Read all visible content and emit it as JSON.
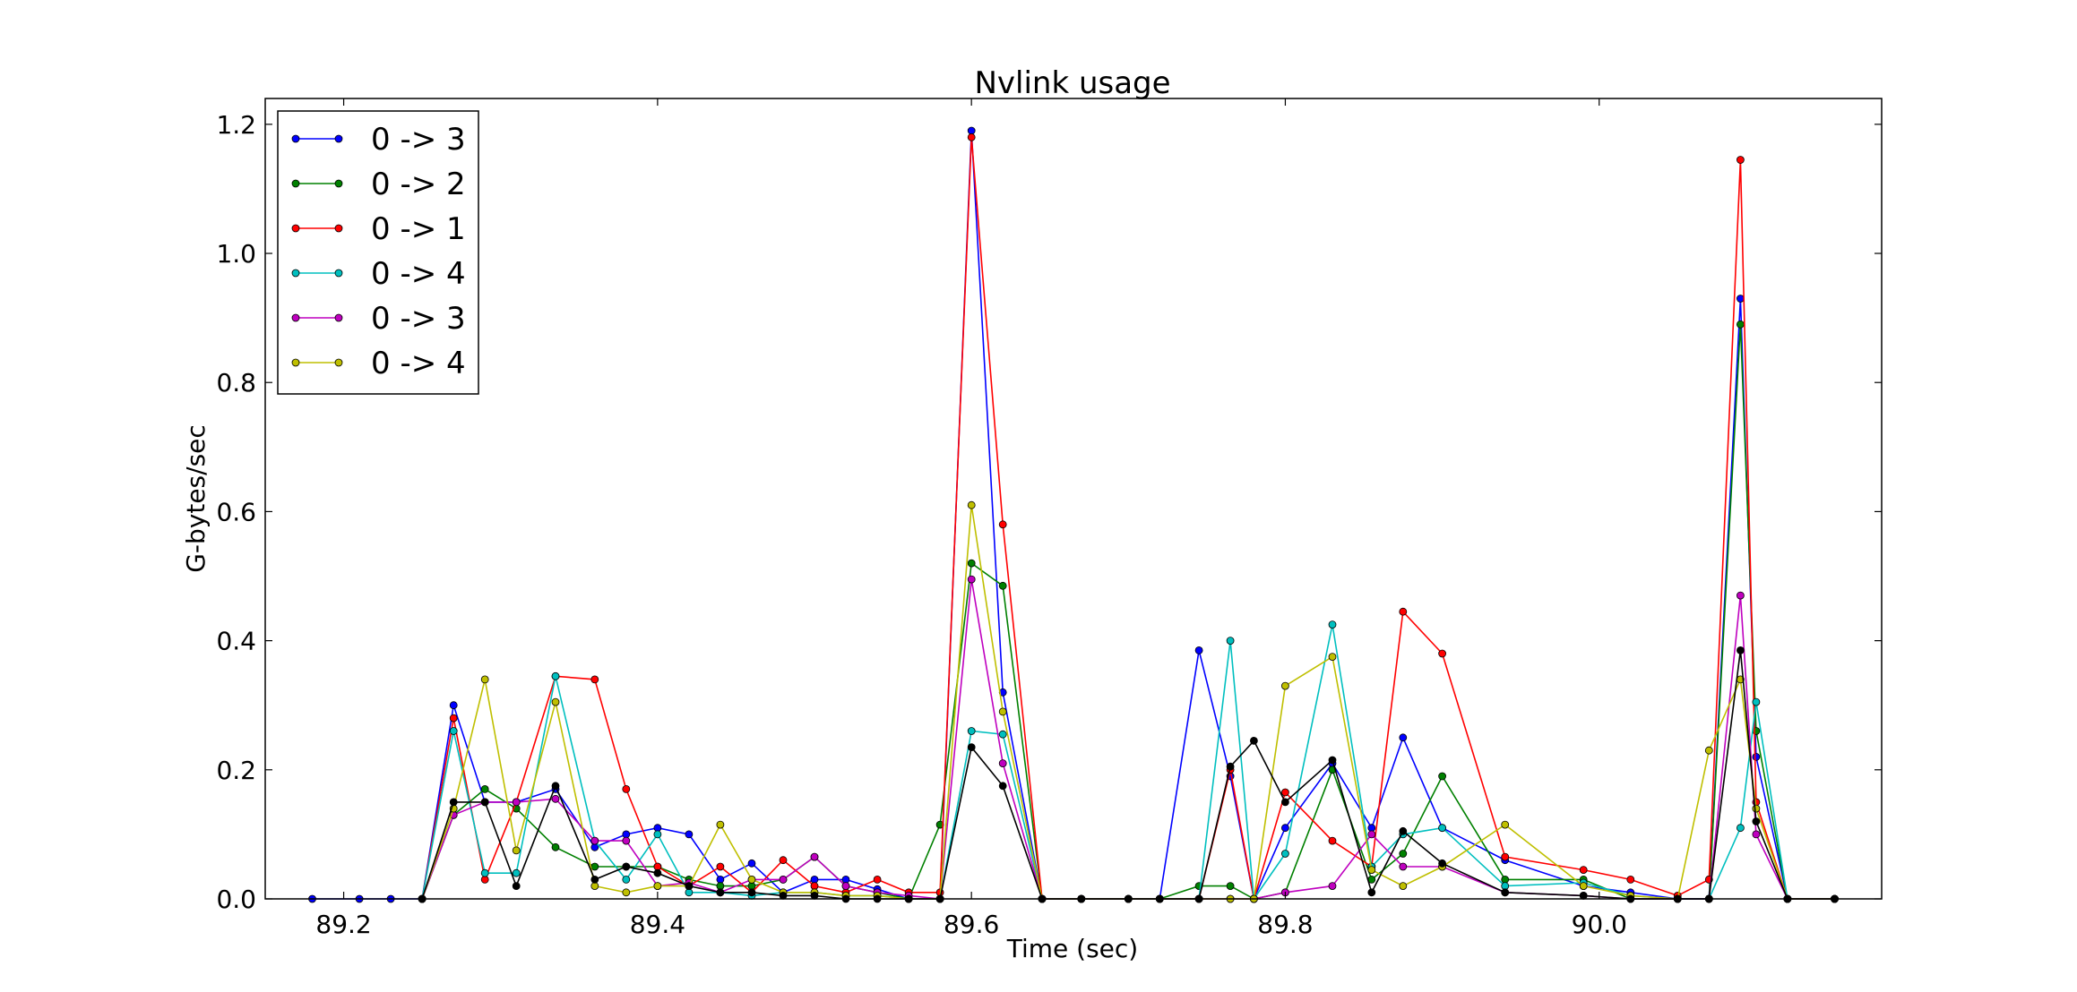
{
  "chart_data": {
    "type": "line",
    "title": "Nvlink usage",
    "xlabel": "Time (sec)",
    "ylabel": "G-bytes/sec",
    "xlim": [
      89.15,
      90.18
    ],
    "ylim": [
      0.0,
      1.24
    ],
    "x_ticks": [
      "89.2",
      "89.4",
      "89.6",
      "89.8",
      "90.0"
    ],
    "x_tick_values": [
      89.2,
      89.4,
      89.6,
      89.8,
      90.0
    ],
    "y_ticks": [
      "0.0",
      "0.2",
      "0.4",
      "0.6",
      "0.8",
      "1.0",
      "1.2"
    ],
    "y_tick_values": [
      0.0,
      0.2,
      0.4,
      0.6,
      0.8,
      1.0,
      1.2
    ],
    "grid": false,
    "legend_position": "top-left",
    "series": [
      {
        "name": "0 -> 3",
        "color": "#0000ff",
        "x": [
          89.18,
          89.21,
          89.23,
          89.25,
          89.27,
          89.29,
          89.31,
          89.335,
          89.36,
          89.38,
          89.4,
          89.42,
          89.44,
          89.46,
          89.48,
          89.5,
          89.52,
          89.54,
          89.56,
          89.58,
          89.6,
          89.62,
          89.645,
          89.67,
          89.7,
          89.72,
          89.745,
          89.765,
          89.78,
          89.8,
          89.83,
          89.855,
          89.875,
          89.9,
          89.94,
          89.99,
          90.02,
          90.05,
          90.07,
          90.09,
          90.1,
          90.12,
          90.15
        ],
        "y": [
          0,
          0,
          0,
          0,
          0.3,
          0.15,
          0.15,
          0.17,
          0.08,
          0.1,
          0.11,
          0.1,
          0.03,
          0.055,
          0.01,
          0.03,
          0.03,
          0.015,
          0,
          0,
          1.19,
          0.32,
          0,
          0,
          0,
          0,
          0.385,
          0.19,
          0,
          0.11,
          0.21,
          0.11,
          0.25,
          0.11,
          0.06,
          0.02,
          0.01,
          0,
          0,
          0.93,
          0.22,
          0,
          0
        ]
      },
      {
        "name": "0 -> 2",
        "color": "#008000",
        "x": [
          89.25,
          89.27,
          89.29,
          89.31,
          89.335,
          89.36,
          89.38,
          89.4,
          89.42,
          89.44,
          89.46,
          89.48,
          89.5,
          89.52,
          89.54,
          89.56,
          89.58,
          89.6,
          89.62,
          89.645,
          89.67,
          89.7,
          89.72,
          89.745,
          89.765,
          89.78,
          89.8,
          89.83,
          89.855,
          89.875,
          89.9,
          89.94,
          89.99,
          90.02,
          90.05,
          90.07,
          90.09,
          90.1,
          90.12,
          90.15
        ],
        "y": [
          0,
          0.13,
          0.17,
          0.14,
          0.08,
          0.05,
          0.05,
          0.05,
          0.03,
          0.02,
          0.02,
          0.03,
          0.065,
          0.02,
          0.01,
          0,
          0.115,
          0.52,
          0.485,
          0,
          0,
          0,
          0,
          0.02,
          0.02,
          0,
          0.01,
          0.2,
          0.03,
          0.07,
          0.19,
          0.03,
          0.03,
          0,
          0,
          0,
          0.89,
          0.26,
          0,
          0
        ]
      },
      {
        "name": "0 -> 1",
        "color": "#ff0000",
        "x": [
          89.25,
          89.27,
          89.29,
          89.31,
          89.335,
          89.36,
          89.38,
          89.4,
          89.42,
          89.44,
          89.46,
          89.48,
          89.5,
          89.52,
          89.54,
          89.56,
          89.58,
          89.6,
          89.62,
          89.645,
          89.67,
          89.7,
          89.72,
          89.745,
          89.765,
          89.78,
          89.8,
          89.83,
          89.855,
          89.875,
          89.9,
          89.94,
          89.99,
          90.02,
          90.05,
          90.07,
          90.09,
          90.1,
          90.12,
          90.15
        ],
        "y": [
          0,
          0.28,
          0.03,
          0.15,
          0.345,
          0.34,
          0.17,
          0.05,
          0.02,
          0.05,
          0.01,
          0.06,
          0.02,
          0.01,
          0.03,
          0.01,
          0.01,
          1.18,
          0.58,
          0,
          0,
          0,
          0,
          0,
          0.2,
          0,
          0.165,
          0.09,
          0.05,
          0.445,
          0.38,
          0.065,
          0.045,
          0.03,
          0.005,
          0.03,
          1.145,
          0.15,
          0,
          0
        ]
      },
      {
        "name": "0 -> 4",
        "color": "#00bfbf",
        "x": [
          89.25,
          89.27,
          89.29,
          89.31,
          89.335,
          89.36,
          89.38,
          89.4,
          89.42,
          89.44,
          89.46,
          89.48,
          89.5,
          89.52,
          89.54,
          89.56,
          89.58,
          89.6,
          89.62,
          89.645,
          89.67,
          89.7,
          89.72,
          89.745,
          89.765,
          89.78,
          89.8,
          89.83,
          89.855,
          89.875,
          89.9,
          89.94,
          89.99,
          90.02,
          90.05,
          90.07,
          90.09,
          90.1,
          90.12,
          90.15
        ],
        "y": [
          0,
          0.26,
          0.04,
          0.04,
          0.345,
          0.09,
          0.03,
          0.1,
          0.01,
          0.01,
          0.005,
          0.01,
          0.01,
          0.005,
          0.005,
          0,
          0,
          0.26,
          0.255,
          0,
          0,
          0,
          0,
          0,
          0.4,
          0,
          0.07,
          0.425,
          0.05,
          0.1,
          0.11,
          0.02,
          0.025,
          0.005,
          0,
          0,
          0.11,
          0.305,
          0,
          0
        ]
      },
      {
        "name": "0 -> 3",
        "color": "#bf00bf",
        "x": [
          89.25,
          89.27,
          89.29,
          89.31,
          89.335,
          89.36,
          89.38,
          89.4,
          89.42,
          89.44,
          89.46,
          89.48,
          89.5,
          89.52,
          89.54,
          89.56,
          89.58,
          89.6,
          89.62,
          89.645,
          89.67,
          89.7,
          89.72,
          89.745,
          89.765,
          89.78,
          89.8,
          89.83,
          89.855,
          89.875,
          89.9,
          89.94,
          89.99,
          90.02,
          90.05,
          90.07,
          90.09,
          90.1,
          90.12,
          90.15
        ],
        "y": [
          0,
          0.13,
          0.15,
          0.15,
          0.155,
          0.09,
          0.09,
          0.02,
          0.025,
          0.01,
          0.03,
          0.03,
          0.065,
          0.02,
          0.01,
          0.005,
          0,
          0.495,
          0.21,
          0,
          0,
          0,
          0,
          0,
          0,
          0,
          0.01,
          0.02,
          0.1,
          0.05,
          0.05,
          0.01,
          0.005,
          0,
          0,
          0,
          0.47,
          0.1,
          0,
          0
        ]
      },
      {
        "name": "0 -> 4",
        "color": "#bfbf00",
        "x": [
          89.25,
          89.27,
          89.29,
          89.31,
          89.335,
          89.36,
          89.38,
          89.4,
          89.42,
          89.44,
          89.46,
          89.48,
          89.5,
          89.52,
          89.54,
          89.56,
          89.58,
          89.6,
          89.62,
          89.645,
          89.67,
          89.7,
          89.72,
          89.745,
          89.765,
          89.78,
          89.8,
          89.83,
          89.855,
          89.875,
          89.9,
          89.94,
          89.99,
          90.02,
          90.05,
          90.07,
          90.09,
          90.1,
          90.12,
          90.15
        ],
        "y": [
          0,
          0.14,
          0.34,
          0.075,
          0.305,
          0.02,
          0.01,
          0.02,
          0.02,
          0.115,
          0.03,
          0.01,
          0.01,
          0.005,
          0.005,
          0,
          0,
          0.61,
          0.29,
          0,
          0,
          0,
          0,
          0,
          0,
          0,
          0.33,
          0.375,
          0.045,
          0.02,
          0.05,
          0.115,
          0.02,
          0.005,
          0,
          0.23,
          0.34,
          0.14,
          0,
          0
        ]
      },
      {
        "name": "",
        "color": "#000000",
        "x": [
          89.25,
          89.27,
          89.29,
          89.31,
          89.335,
          89.36,
          89.38,
          89.4,
          89.42,
          89.44,
          89.46,
          89.48,
          89.5,
          89.52,
          89.54,
          89.56,
          89.58,
          89.6,
          89.62,
          89.645,
          89.67,
          89.7,
          89.72,
          89.745,
          89.765,
          89.78,
          89.8,
          89.83,
          89.855,
          89.875,
          89.9,
          89.94,
          89.99,
          90.02,
          90.05,
          90.07,
          90.09,
          90.1,
          90.12,
          90.15
        ],
        "y": [
          0,
          0.15,
          0.15,
          0.02,
          0.175,
          0.03,
          0.05,
          0.04,
          0.02,
          0.01,
          0.01,
          0.005,
          0.005,
          0,
          0,
          0,
          0,
          0.235,
          0.175,
          0,
          0,
          0,
          0,
          0,
          0.205,
          0.245,
          0.15,
          0.215,
          0.01,
          0.105,
          0.055,
          0.01,
          0.005,
          0,
          0,
          0,
          0.385,
          0.12,
          0,
          0
        ]
      }
    ]
  }
}
